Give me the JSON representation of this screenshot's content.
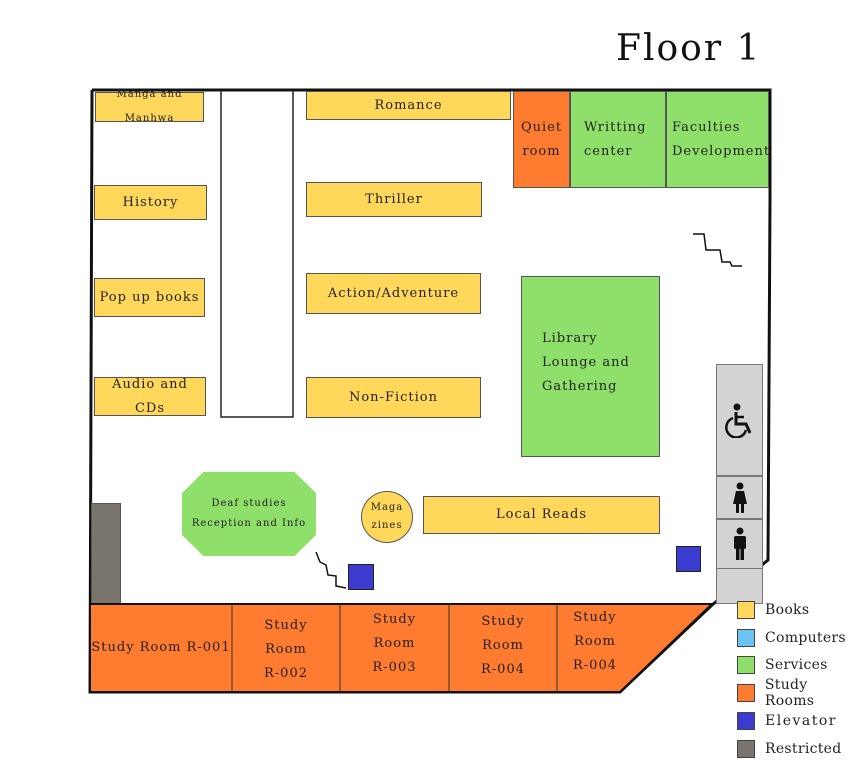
{
  "title": "Floor 1",
  "colors": {
    "books": "#ffd75a",
    "computers": "#6cc2f0",
    "services": "#8fdf6b",
    "study_rooms": "#ff7b2f",
    "elevator": "#3b3ccf",
    "restricted": "#7a756c"
  },
  "rooms": {
    "manga": "Manga and Manhwa",
    "history": "History",
    "popup": "Pop up books",
    "audio": "Audio and CDs",
    "romance": "Romance",
    "thriller": "Thriller",
    "action": "Action/Adventure",
    "nonfiction": "Non-Fiction",
    "quiet_line1": "Quiet",
    "quiet_line2": "room",
    "writing_line1": "Writting",
    "writing_line2": "center",
    "faculties_line1": "Faculties",
    "faculties_line2": "Development",
    "lounge_line1": "Library",
    "lounge_line2": "Lounge and",
    "lounge_line3": "Gathering",
    "deaf_line1": "Deaf studies",
    "deaf_line2": "Reception and Info",
    "magazines_line1": "Maga",
    "magazines_line2": "zines",
    "local": "Local Reads"
  },
  "study_rooms": {
    "r001": "Study Room R-001",
    "r002": [
      "Study",
      "Room",
      "R-002"
    ],
    "r003": [
      "Study",
      "Room",
      "R-003"
    ],
    "r004a": [
      "Study",
      "Room",
      "R-004"
    ],
    "r004b": [
      "Study",
      "Room",
      "R-004"
    ]
  },
  "icons": [
    "wheelchair-icon",
    "woman-icon",
    "man-icon",
    "stairs-icon"
  ],
  "legend": [
    {
      "label": "Books",
      "color": "#ffd75a"
    },
    {
      "label": "Computers",
      "color": "#6cc2f0"
    },
    {
      "label": "Services",
      "color": "#8fdf6b"
    },
    {
      "label": "Study Rooms",
      "color": "#ff7b2f"
    },
    {
      "label": "Elevator",
      "color": "#3b3ccf"
    },
    {
      "label": "Restricted",
      "color": "#7a756c"
    }
  ]
}
